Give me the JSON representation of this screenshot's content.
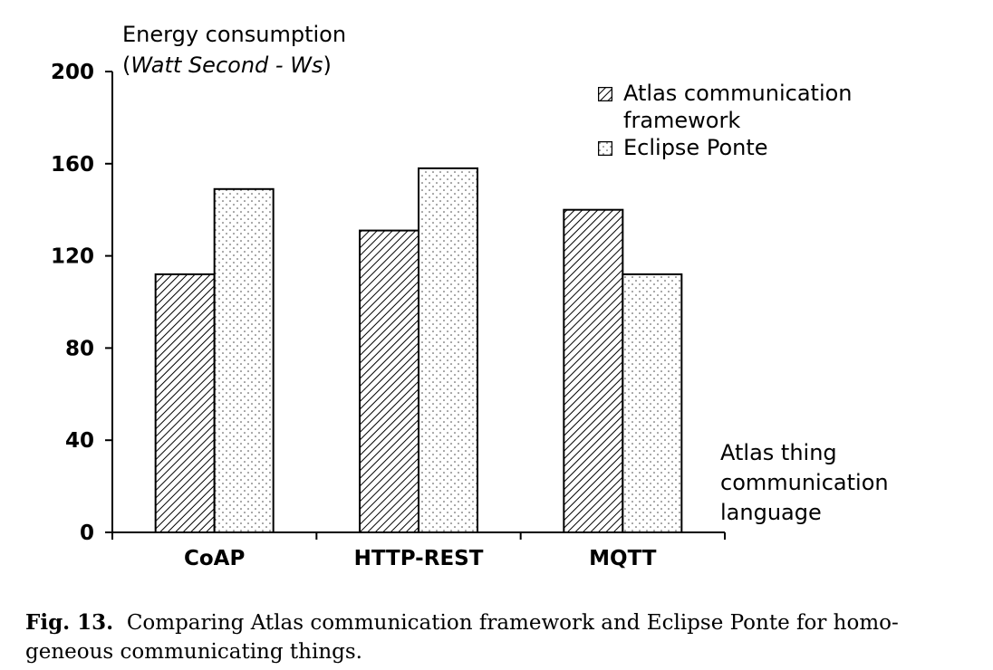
{
  "chart_data": {
    "type": "bar",
    "ylabel": "Energy consumption",
    "ylabel_unit_prefix": "(",
    "ylabel_unit": "Watt Second - Ws",
    "ylabel_unit_suffix": ")",
    "xlabel": "Atlas thing communication language",
    "xlabel_lines": [
      "Atlas thing",
      "communication",
      "language"
    ],
    "categories": [
      "CoAP",
      "HTTP-REST",
      "MQTT"
    ],
    "series": [
      {
        "name": "Atlas communication framework",
        "name_lines": [
          "Atlas communication",
          "framework"
        ],
        "values": [
          112,
          131,
          140
        ],
        "fill": "hatch"
      },
      {
        "name": "Eclipse Ponte",
        "name_lines": [
          "Eclipse Ponte"
        ],
        "values": [
          149,
          158,
          112
        ],
        "fill": "dots"
      }
    ],
    "ylim": [
      0,
      200
    ],
    "yticks": [
      "0",
      "40",
      "80",
      "120",
      "160",
      "200"
    ],
    "grid": false,
    "legend_position": "top-right"
  },
  "caption": {
    "label": "Fig. 13.",
    "text": "Comparing Atlas communication framework and Eclipse Ponte for homo-geneous communicating things."
  }
}
